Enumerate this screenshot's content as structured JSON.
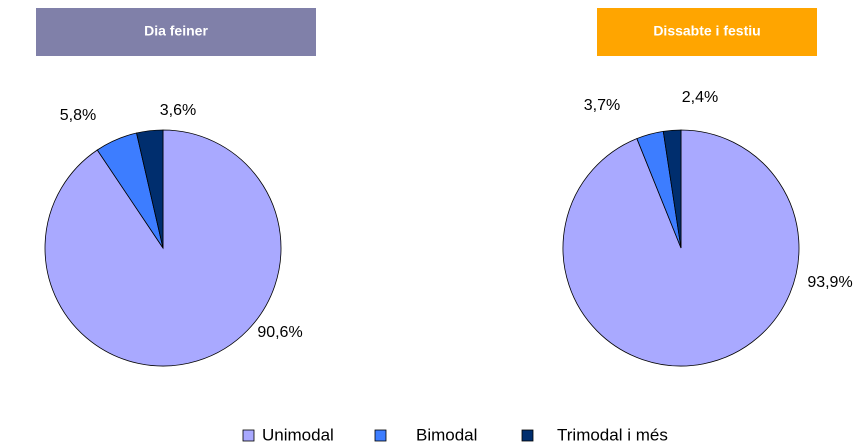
{
  "chart_data": [
    {
      "type": "pie",
      "title": "Dia feiner",
      "title_color": "#8080a9",
      "categories": [
        "Unimodal",
        "Bimodal",
        "Trimodal i més"
      ],
      "values": [
        90.6,
        5.8,
        3.6
      ],
      "value_labels": [
        "90,6%",
        "5,8%",
        "3,6%"
      ],
      "colors": [
        "#a9a9ff",
        "#3d7dff",
        "#002e6e"
      ]
    },
    {
      "type": "pie",
      "title": "Dissabte i festiu",
      "title_color": "#ffa500",
      "categories": [
        "Unimodal",
        "Bimodal",
        "Trimodal i més"
      ],
      "values": [
        93.9,
        3.7,
        2.4
      ],
      "value_labels": [
        "93,9%",
        "3,7%",
        "2,4%"
      ],
      "colors": [
        "#a9a9ff",
        "#3d7dff",
        "#002e6e"
      ]
    }
  ]
}
